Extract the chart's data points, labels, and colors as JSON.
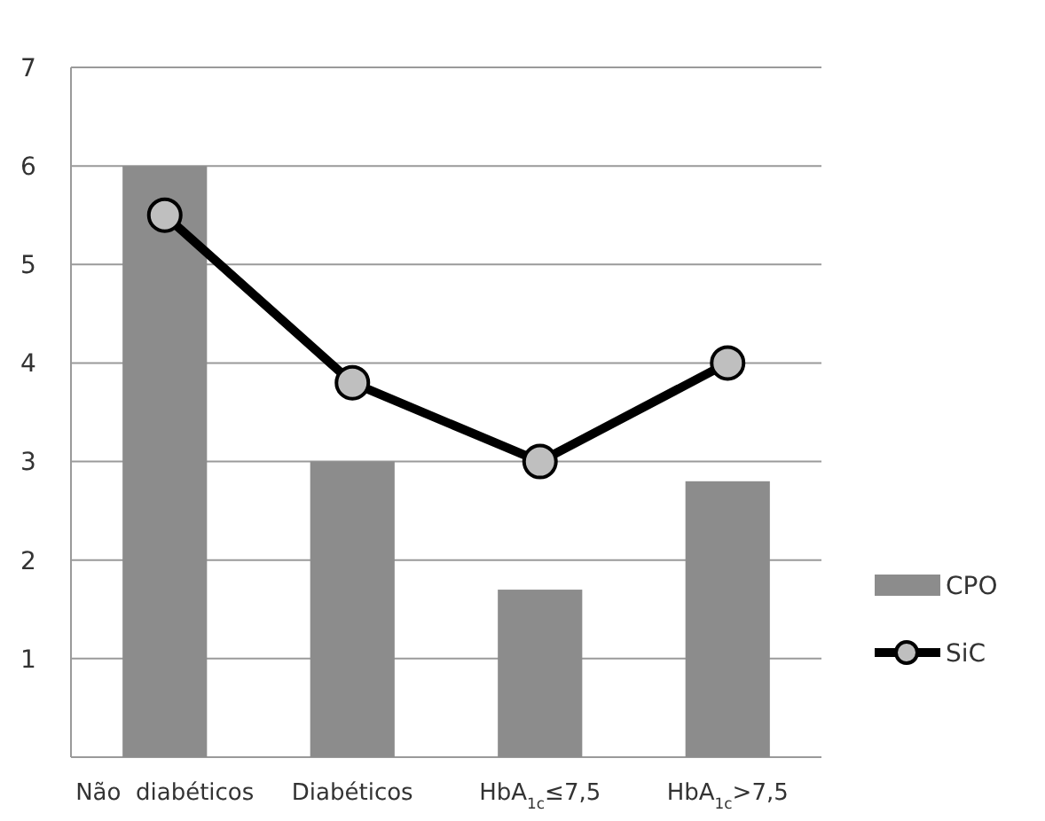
{
  "chart_data": {
    "type": "bar",
    "categories": [
      "Não  diabéticos",
      "Diabéticos",
      "HbA$_{1c}$≤7,5",
      "HbA$_{1c}$>7,5"
    ],
    "series": [
      {
        "name": "CPO",
        "color": "#8c8c8c",
        "values": [
          6,
          3,
          1.7,
          2.8
        ]
      },
      {
        "name": "SiC",
        "type": "line",
        "color": "#000000",
        "values": [
          5.5,
          3.8,
          3,
          4
        ]
      }
    ],
    "ylim": [
      0,
      7
    ],
    "yticks": [
      {
        "value": 1,
        "label": "1"
      },
      2,
      3,
      4,
      5,
      6,
      7
    ],
    "grid": "y",
    "legend": "right",
    "marker": "circle",
    "line_style": "solid"
  }
}
